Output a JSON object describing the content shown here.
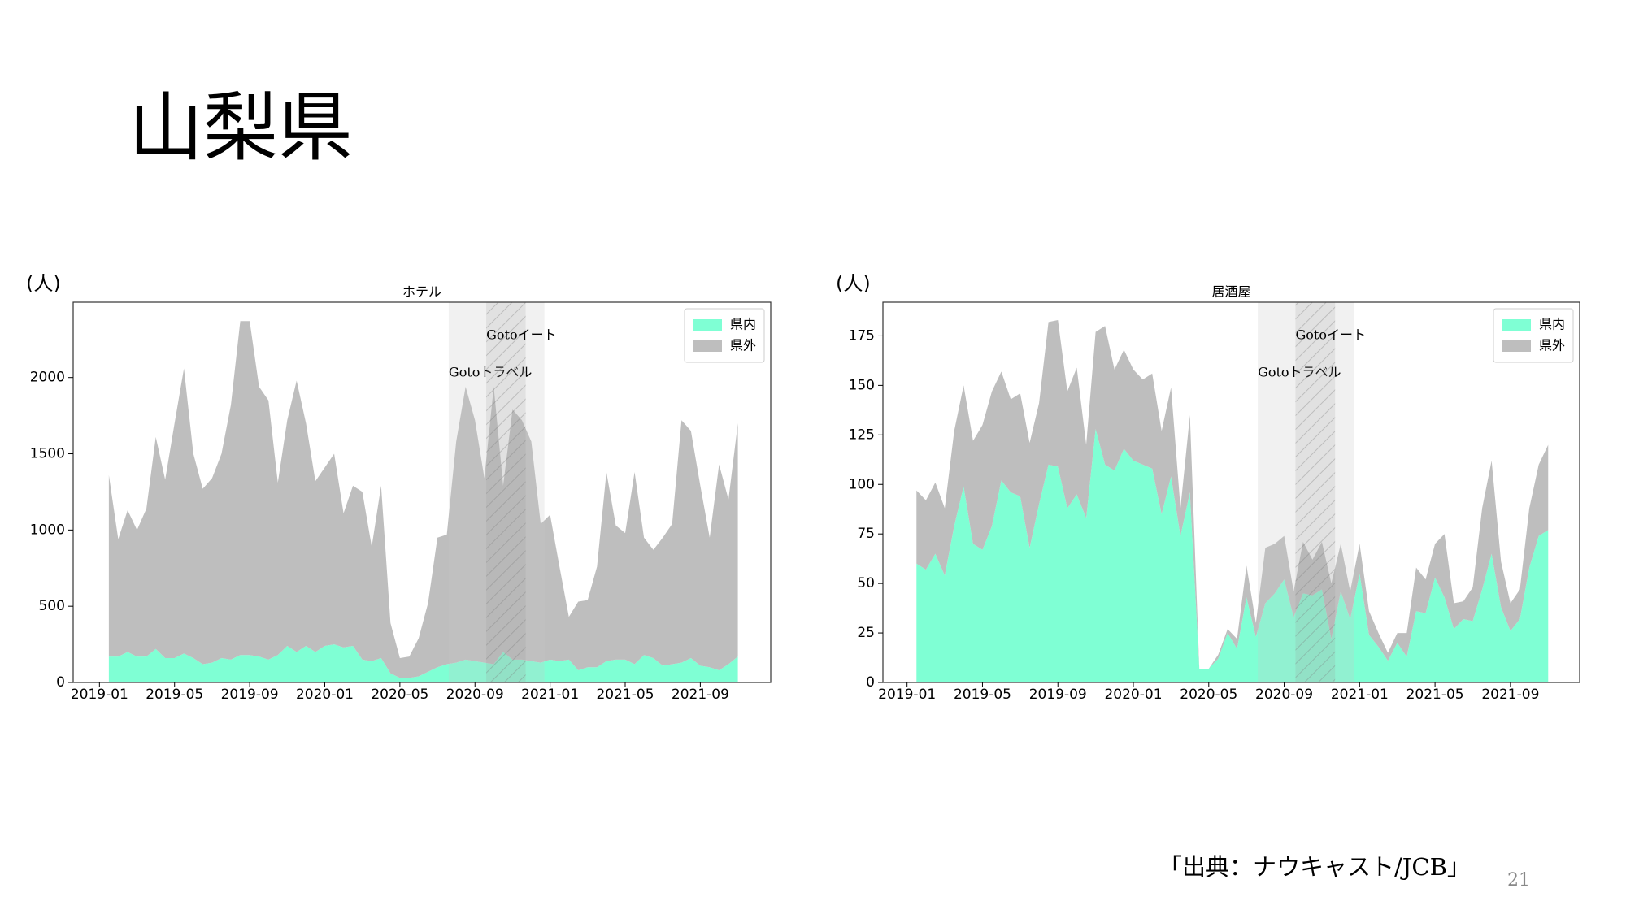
{
  "slide_title": "山梨県",
  "chart_data": [
    {
      "type": "area",
      "stacked": true,
      "title": "ホテル",
      "y_label": "(人)",
      "x": [
        0.5,
        1,
        1.5,
        2,
        2.5,
        3,
        3.5,
        4,
        4.5,
        5,
        5.5,
        6,
        6.5,
        7,
        7.5,
        8,
        8.5,
        9,
        9.5,
        10,
        10.5,
        11,
        11.5,
        12,
        12.5,
        13,
        13.5,
        14,
        14.5,
        15,
        15.5,
        16,
        16.5,
        17,
        17.5,
        18,
        18.5,
        19,
        19.5,
        20,
        20.5,
        21,
        21.5,
        22,
        22.5,
        23,
        23.5,
        24,
        24.5,
        25,
        25.5,
        26,
        26.5,
        27,
        27.5,
        28,
        28.5,
        29,
        29.5,
        30,
        30.5,
        31,
        31.5,
        32,
        32.5,
        33,
        33.5,
        34
      ],
      "xlim": [
        -1.4,
        35.75
      ],
      "xticks": [
        {
          "value": 0,
          "label": "2019-01"
        },
        {
          "value": 4,
          "label": "2019-05"
        },
        {
          "value": 8,
          "label": "2019-09"
        },
        {
          "value": 12,
          "label": "2020-01"
        },
        {
          "value": 16,
          "label": "2020-05"
        },
        {
          "value": 20,
          "label": "2020-09"
        },
        {
          "value": 24,
          "label": "2021-01"
        },
        {
          "value": 28,
          "label": "2021-05"
        },
        {
          "value": 32,
          "label": "2021-09"
        }
      ],
      "ylim": [
        0,
        2494
      ],
      "yticks": [
        0,
        500,
        1000,
        1500,
        2000
      ],
      "legend": "upper right",
      "series": [
        {
          "name": "県内",
          "color": "#7fffd4",
          "values": [
            170,
            170,
            200,
            170,
            170,
            220,
            160,
            160,
            190,
            160,
            120,
            130,
            160,
            150,
            180,
            180,
            170,
            150,
            180,
            240,
            200,
            240,
            200,
            240,
            250,
            230,
            240,
            150,
            140,
            160,
            60,
            30,
            30,
            40,
            70,
            100,
            120,
            130,
            150,
            140,
            130,
            120,
            200,
            150,
            150,
            140,
            130,
            150,
            140,
            150,
            80,
            100,
            100,
            140,
            150,
            150,
            120,
            180,
            160,
            110,
            120,
            130,
            160,
            110,
            100,
            80,
            120,
            170
          ]
        },
        {
          "name": "県外",
          "color": "#bebebe",
          "values": [
            1190,
            770,
            930,
            830,
            970,
            1390,
            1170,
            1540,
            1870,
            1340,
            1150,
            1210,
            1340,
            1670,
            2190,
            2190,
            1770,
            1700,
            1130,
            1480,
            1780,
            1460,
            1120,
            1170,
            1250,
            880,
            1050,
            1100,
            750,
            1130,
            330,
            130,
            140,
            250,
            450,
            850,
            850,
            1450,
            1790,
            1580,
            1210,
            1820,
            1090,
            1640,
            1570,
            1440,
            910,
            950,
            620,
            280,
            450,
            440,
            660,
            1240,
            880,
            830,
            1260,
            770,
            710,
            840,
            920,
            1590,
            1490,
            1180,
            850,
            1350,
            1080,
            1530
          ]
        }
      ],
      "spans": [
        {
          "label": "Gotoトラベル",
          "start": 18.6,
          "end": 23.7,
          "hatch": false
        },
        {
          "label": "Gotoイート",
          "start": 20.6,
          "end": 22.7,
          "hatch": true
        }
      ]
    },
    {
      "type": "area",
      "stacked": true,
      "title": "居酒屋",
      "y_label": "(人)",
      "x": [
        0.5,
        1,
        1.5,
        2,
        2.5,
        3,
        3.5,
        4,
        4.5,
        5,
        5.5,
        6,
        6.5,
        7,
        7.5,
        8,
        8.5,
        9,
        9.5,
        10,
        10.5,
        11,
        11.5,
        12,
        12.5,
        13,
        13.5,
        14,
        14.5,
        15,
        15.5,
        16,
        16.5,
        17,
        17.5,
        18,
        18.5,
        19,
        19.5,
        20,
        20.5,
        21,
        21.5,
        22,
        22.5,
        23,
        23.5,
        24,
        24.5,
        25,
        25.5,
        26,
        26.5,
        27,
        27.5,
        28,
        28.5,
        29,
        29.5,
        30,
        30.5,
        31,
        31.5,
        32,
        32.5,
        33,
        33.5,
        34
      ],
      "xlim": [
        -1.28,
        35.67
      ],
      "xticks": [
        {
          "value": 0,
          "label": "2019-01"
        },
        {
          "value": 4,
          "label": "2019-05"
        },
        {
          "value": 8,
          "label": "2019-09"
        },
        {
          "value": 12,
          "label": "2020-01"
        },
        {
          "value": 16,
          "label": "2020-05"
        },
        {
          "value": 20,
          "label": "2020-09"
        },
        {
          "value": 24,
          "label": "2021-01"
        },
        {
          "value": 28,
          "label": "2021-05"
        },
        {
          "value": 32,
          "label": "2021-09"
        }
      ],
      "ylim": [
        0,
        192
      ],
      "yticks": [
        0,
        25,
        50,
        75,
        100,
        125,
        150,
        175
      ],
      "legend": "upper right",
      "series": [
        {
          "name": "県内",
          "color": "#7fffd4",
          "values": [
            60,
            57,
            65,
            54,
            79,
            99,
            70,
            67,
            79,
            102,
            96,
            94,
            68,
            90,
            110,
            109,
            88,
            95,
            83,
            128,
            110,
            107,
            118,
            112,
            110,
            108,
            85,
            104,
            74,
            96,
            7,
            7,
            12,
            25,
            17,
            43,
            23,
            40,
            45,
            52,
            33,
            45,
            44,
            47,
            22,
            46,
            32,
            55,
            24,
            18,
            11,
            20,
            13,
            36,
            35,
            53,
            43,
            27,
            32,
            31,
            47,
            65,
            38,
            26,
            32,
            58,
            74,
            77
          ]
        },
        {
          "name": "県外",
          "color": "#bebebe",
          "values": [
            37,
            35,
            36,
            34,
            48,
            51,
            52,
            63,
            68,
            55,
            47,
            52,
            53,
            51,
            72,
            74,
            59,
            64,
            37,
            49,
            70,
            51,
            50,
            46,
            43,
            48,
            42,
            45,
            14,
            39,
            0,
            0,
            2,
            2,
            5,
            16,
            7,
            28,
            25,
            22,
            13,
            26,
            18,
            24,
            28,
            24,
            14,
            15,
            12,
            7,
            4,
            5,
            12,
            22,
            17,
            17,
            32,
            13,
            9,
            17,
            41,
            47,
            23,
            14,
            15,
            30,
            36,
            43
          ]
        }
      ],
      "spans": [
        {
          "label": "Gotoトラベル",
          "start": 18.6,
          "end": 23.7,
          "hatch": false
        },
        {
          "label": "Gotoイート",
          "start": 20.6,
          "end": 22.7,
          "hatch": true
        }
      ]
    }
  ],
  "source": "「出典：ナウキャスト/JCB」",
  "page_number": "21"
}
